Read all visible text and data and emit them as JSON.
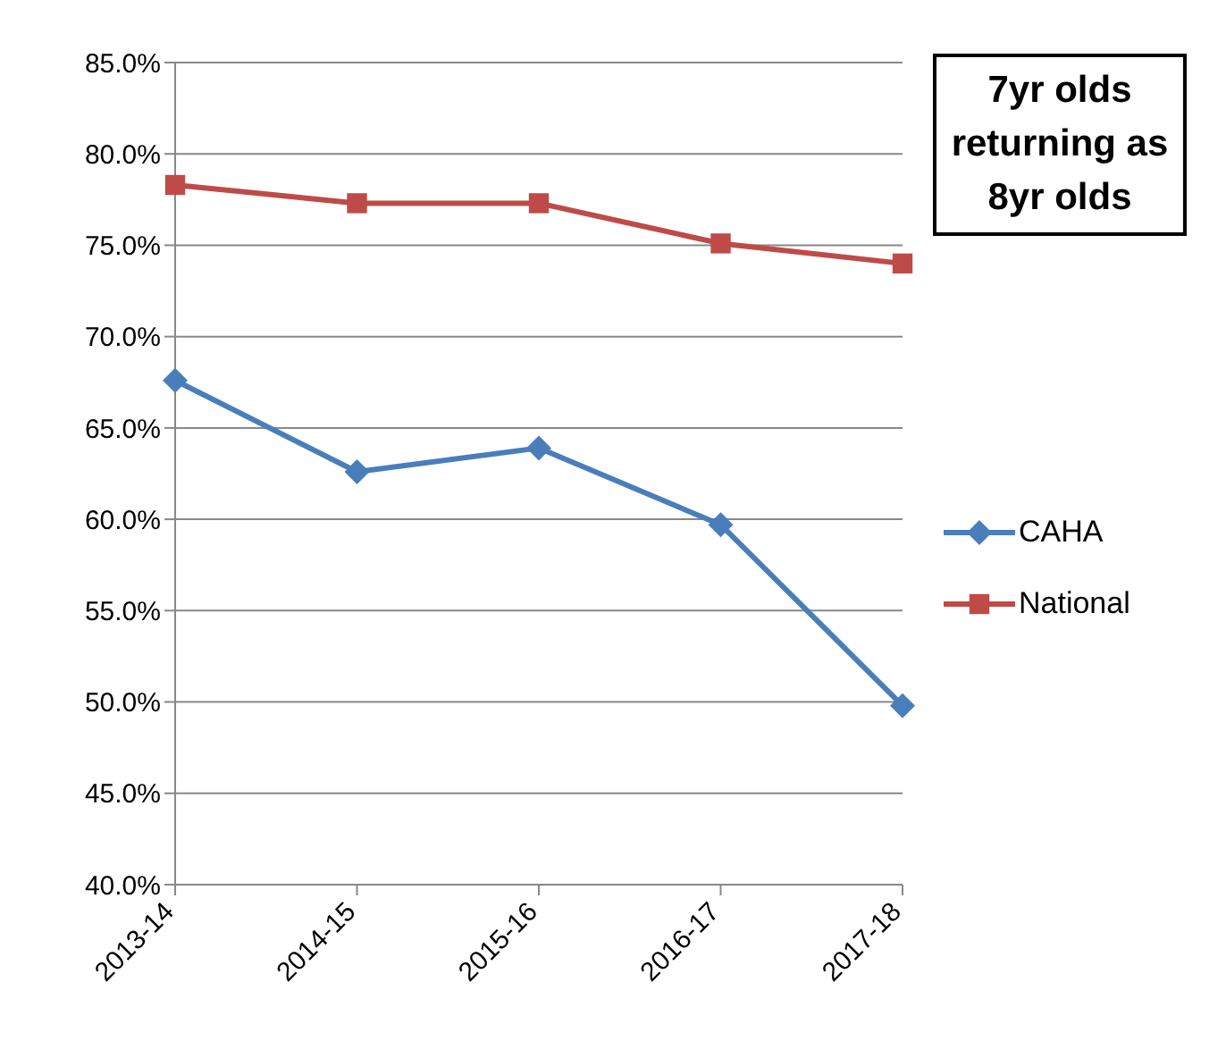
{
  "chart_data": {
    "type": "line",
    "title": "7yr olds returning as 8yr olds",
    "categories": [
      "2013-14",
      "2014-15",
      "2015-16",
      "2016-17",
      "2017-18"
    ],
    "series": [
      {
        "name": "CAHA",
        "color": "#4a7ebb",
        "marker": "diamond",
        "values": [
          67.6,
          62.6,
          63.9,
          59.7,
          49.8
        ]
      },
      {
        "name": "National",
        "color": "#be4b48",
        "marker": "square",
        "values": [
          78.3,
          77.3,
          77.3,
          75.1,
          74.0
        ]
      }
    ],
    "ylim": [
      40,
      85
    ],
    "yticks": [
      {
        "value": 40,
        "label": "40.0%"
      },
      {
        "value": 45,
        "label": "45.0%"
      },
      {
        "value": 50,
        "label": "50.0%"
      },
      {
        "value": 55,
        "label": "55.0%"
      },
      {
        "value": 60,
        "label": "60.0%"
      },
      {
        "value": 65,
        "label": "65.0%"
      },
      {
        "value": 70,
        "label": "70.0%"
      },
      {
        "value": 75,
        "label": "75.0%"
      },
      {
        "value": 80,
        "label": "80.0%"
      },
      {
        "value": 85,
        "label": "85.0%"
      }
    ],
    "grid": "y",
    "legend": "right"
  }
}
